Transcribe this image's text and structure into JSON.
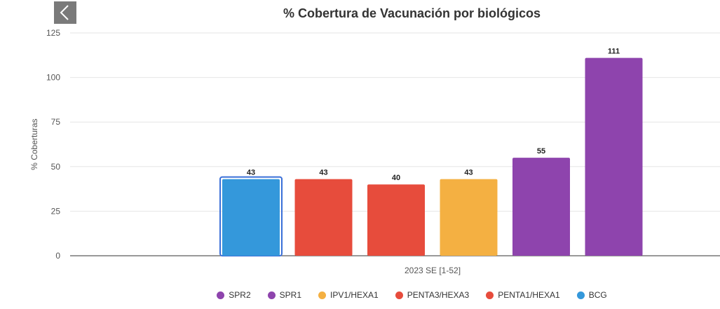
{
  "header": {
    "back_icon": "chevron-left-icon"
  },
  "chart_data": {
    "type": "bar",
    "title": "% Cobertura de Vacunación por biológicos",
    "xlabel": "2023 SE [1-52]",
    "ylabel": "% Coberturas",
    "ylim": [
      0,
      125
    ],
    "yticks": [
      "0",
      "25",
      "50",
      "75",
      "100",
      "125"
    ],
    "grid": true,
    "legend_position": "bottom",
    "series": [
      {
        "name": "BCG",
        "value": 43,
        "color": "#3498db"
      },
      {
        "name": "PENTA1/HEXA1",
        "value": 43,
        "color": "#e74c3c"
      },
      {
        "name": "PENTA3/HEXA3",
        "value": 40,
        "color": "#e74c3c"
      },
      {
        "name": "IPV1/HEXA1",
        "value": 43,
        "color": "#f4b042"
      },
      {
        "name": "SPR1",
        "value": 55,
        "color": "#8e44ad"
      },
      {
        "name": "SPR2",
        "value": 111,
        "color": "#8e44ad"
      }
    ],
    "legend": [
      {
        "name": "SPR2",
        "color": "#8e44ad"
      },
      {
        "name": "SPR1",
        "color": "#8e44ad"
      },
      {
        "name": "IPV1/HEXA1",
        "color": "#f4b042"
      },
      {
        "name": "PENTA3/HEXA3",
        "color": "#e74c3c"
      },
      {
        "name": "PENTA1/HEXA1",
        "color": "#e74c3c"
      },
      {
        "name": "BCG",
        "color": "#3498db"
      }
    ]
  }
}
